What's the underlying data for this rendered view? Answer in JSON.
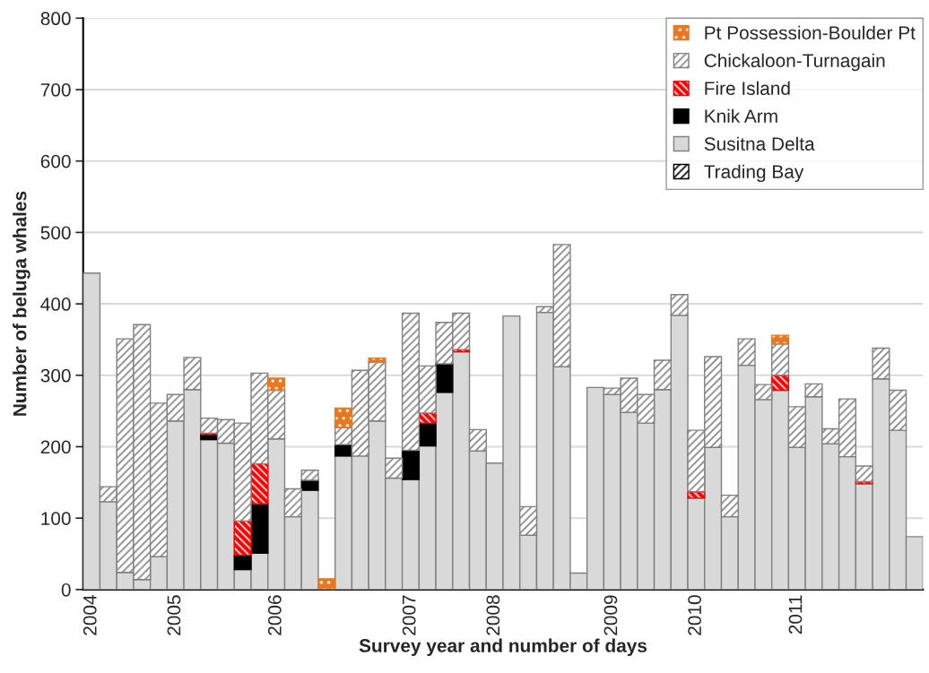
{
  "chart_data": {
    "type": "bar",
    "stacked": true,
    "xlabel": "Survey year and number of days",
    "ylabel": "Number of beluga whales",
    "categories": [
      "2004",
      null,
      null,
      null,
      null,
      "2005",
      null,
      null,
      null,
      null,
      null,
      "2006",
      null,
      null,
      null,
      null,
      null,
      null,
      null,
      "2007",
      null,
      null,
      null,
      null,
      "2008",
      null,
      null,
      null,
      null,
      null,
      null,
      "2009",
      null,
      null,
      null,
      null,
      "2010",
      null,
      null,
      null,
      null,
      null,
      "2011",
      null,
      null,
      null,
      null,
      null,
      null,
      null
    ],
    "series": [
      {
        "name": "Trading Bay",
        "color": "#000000",
        "values": [
          null,
          null,
          null,
          null,
          null,
          null,
          null,
          null,
          null,
          null,
          null,
          null,
          null,
          null,
          null,
          null,
          null,
          null,
          null,
          null,
          null,
          null,
          null,
          null,
          null,
          null,
          null,
          null,
          null,
          null,
          null,
          null,
          null,
          null,
          null,
          null,
          null,
          null,
          null,
          null,
          null,
          null,
          null,
          null,
          null,
          null,
          null,
          null,
          null,
          null
        ]
      },
      {
        "name": "Susitna Delta",
        "color": "#d9d9d9",
        "values": [
          443,
          123,
          24,
          14,
          46,
          236,
          280,
          210,
          205,
          28,
          51,
          211,
          102,
          139,
          null,
          187,
          187,
          236,
          156,
          154,
          201,
          276,
          333,
          194,
          177,
          383,
          76,
          388,
          312,
          23,
          283,
          273,
          248,
          233,
          280,
          384,
          128,
          199,
          102,
          314,
          266,
          279,
          199,
          270,
          204,
          186,
          148,
          295,
          223,
          74
        ]
      },
      {
        "name": "Knik Arm",
        "color": "#000000",
        "values": [
          null,
          null,
          null,
          null,
          null,
          null,
          null,
          7,
          null,
          20,
          69,
          null,
          null,
          14,
          null,
          16,
          null,
          null,
          null,
          41,
          32,
          40,
          null,
          null,
          null,
          null,
          null,
          null,
          null,
          null,
          null,
          null,
          null,
          null,
          null,
          null,
          null,
          null,
          null,
          null,
          null,
          null,
          null,
          null,
          null,
          null,
          null,
          null,
          null,
          null
        ]
      },
      {
        "name": "Fire Island",
        "color": "#ff0000",
        "values": [
          null,
          null,
          null,
          null,
          null,
          null,
          null,
          2,
          null,
          48,
          56,
          null,
          null,
          null,
          null,
          null,
          null,
          null,
          null,
          null,
          14,
          null,
          3,
          null,
          null,
          null,
          null,
          null,
          null,
          null,
          null,
          null,
          null,
          null,
          null,
          null,
          9,
          null,
          null,
          null,
          null,
          21,
          null,
          null,
          null,
          null,
          3,
          null,
          null,
          null
        ]
      },
      {
        "name": "Chickaloon-Turnagain",
        "color": "#808080",
        "values": [
          null,
          21,
          327,
          357,
          215,
          37,
          45,
          21,
          33,
          137,
          127,
          68,
          39,
          14,
          null,
          24,
          120,
          82,
          28,
          192,
          66,
          58,
          51,
          30,
          null,
          null,
          40,
          8,
          171,
          null,
          null,
          9,
          48,
          40,
          41,
          29,
          86,
          127,
          30,
          37,
          21,
          44,
          57,
          18,
          21,
          81,
          22,
          43,
          56,
          null
        ]
      },
      {
        "name": "Pt Possession-Boulder Pt",
        "color": "#e87722",
        "values": [
          null,
          null,
          null,
          null,
          null,
          null,
          null,
          null,
          null,
          null,
          null,
          17,
          null,
          null,
          15,
          27,
          null,
          6,
          null,
          null,
          null,
          null,
          null,
          null,
          null,
          null,
          null,
          null,
          null,
          null,
          null,
          null,
          null,
          null,
          null,
          null,
          null,
          null,
          null,
          null,
          null,
          12,
          null,
          null,
          null,
          null,
          null,
          null,
          null,
          null
        ]
      }
    ],
    "ylim": [
      0,
      800
    ],
    "yticks": [
      0,
      100,
      200,
      300,
      400,
      500,
      600,
      700,
      800
    ],
    "grid": "y",
    "legend": "top right"
  }
}
